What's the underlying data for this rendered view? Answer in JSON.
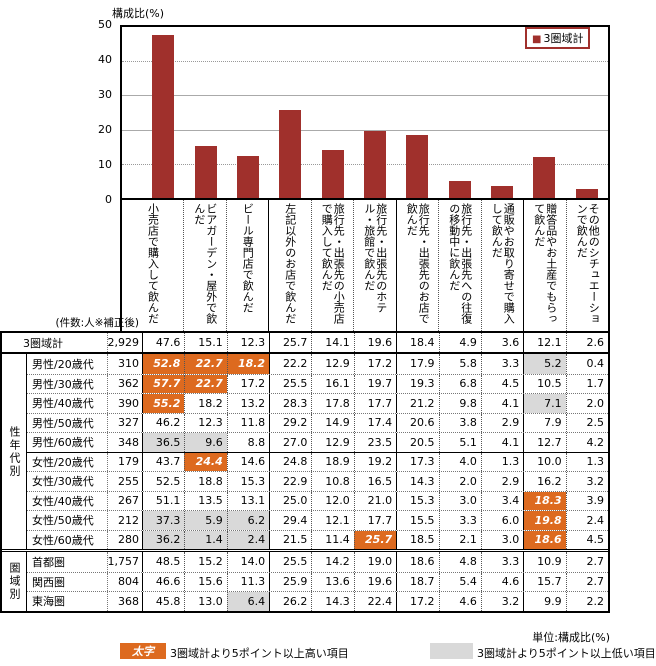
{
  "chart": {
    "title": "構成比(%)",
    "legend_marker": "■",
    "legend_label": "3圏域計",
    "y_ticks": [
      "50",
      "40",
      "30",
      "20",
      "10",
      "0"
    ],
    "bar_color": "#A0302C",
    "highlight_high_color": "#DD6A1F",
    "highlight_low_color": "#D9D9D9"
  },
  "chart_data": {
    "type": "bar",
    "title": "構成比(%)",
    "ylabel": "構成比(%)",
    "ylim": [
      0,
      50
    ],
    "grid": "horizontal",
    "legend_position": "top-right",
    "categories": [
      "小売店で購入して飲んだ",
      "ビアガーデン・屋外で飲んだ",
      "ビール専門店で飲んだ",
      "左記以外のお店で飲んだ",
      "旅行先・出張先の小売店で購入して飲んだ",
      "旅行先・出張先のホテル・旅館で飲んだ",
      "旅行先・出張先のお店で飲んだ",
      "旅行先・出張先への往復の移動中に飲んだ",
      "通販やお取り寄せで購入して飲んだ",
      "贈答品やお土産でもらって飲んだ",
      "その他のシチュエーションで飲んだ"
    ],
    "series": [
      {
        "name": "3圏域計",
        "values": [
          47.6,
          15.1,
          12.3,
          25.7,
          14.1,
          19.6,
          18.4,
          4.9,
          3.6,
          12.1,
          2.6
        ]
      }
    ]
  },
  "table": {
    "count_header": "(件数:人※補正後)",
    "groups": [
      {
        "label": "性年代別"
      },
      {
        "label": "圏域別"
      }
    ],
    "rows": [
      {
        "label": "3圏域計",
        "count": "2,929",
        "values": [
          "47.6",
          "15.1",
          "12.3",
          "25.7",
          "14.1",
          "19.6",
          "18.4",
          "4.9",
          "3.6",
          "12.1",
          "2.6"
        ],
        "high": [],
        "low": []
      },
      {
        "label": "男性/20歳代",
        "count": "310",
        "values": [
          "52.8",
          "22.7",
          "18.2",
          "22.2",
          "12.9",
          "17.2",
          "17.9",
          "5.8",
          "3.3",
          "5.2",
          "0.4"
        ],
        "high": [
          0,
          1,
          2
        ],
        "low": [
          9
        ]
      },
      {
        "label": "男性/30歳代",
        "count": "362",
        "values": [
          "57.7",
          "22.7",
          "17.2",
          "25.5",
          "16.1",
          "19.7",
          "19.3",
          "6.8",
          "4.5",
          "10.5",
          "1.7"
        ],
        "high": [
          0,
          1
        ],
        "low": []
      },
      {
        "label": "男性/40歳代",
        "count": "390",
        "values": [
          "55.2",
          "18.2",
          "13.2",
          "28.3",
          "17.8",
          "17.7",
          "21.2",
          "9.8",
          "4.1",
          "7.1",
          "2.0"
        ],
        "high": [
          0
        ],
        "low": [
          9
        ]
      },
      {
        "label": "男性/50歳代",
        "count": "327",
        "values": [
          "46.2",
          "12.3",
          "11.8",
          "29.2",
          "14.9",
          "17.4",
          "20.6",
          "3.8",
          "2.9",
          "7.9",
          "2.5"
        ],
        "high": [],
        "low": []
      },
      {
        "label": "男性/60歳代",
        "count": "348",
        "values": [
          "36.5",
          "9.6",
          "8.8",
          "27.0",
          "12.9",
          "23.5",
          "20.5",
          "5.1",
          "4.1",
          "12.7",
          "4.2"
        ],
        "high": [],
        "low": [
          0,
          1
        ]
      },
      {
        "label": "女性/20歳代",
        "count": "179",
        "values": [
          "43.7",
          "24.4",
          "14.6",
          "24.8",
          "18.9",
          "19.2",
          "17.3",
          "4.0",
          "1.3",
          "10.0",
          "1.3"
        ],
        "high": [
          1
        ],
        "low": []
      },
      {
        "label": "女性/30歳代",
        "count": "255",
        "values": [
          "52.5",
          "18.8",
          "15.3",
          "22.9",
          "10.8",
          "16.5",
          "14.3",
          "2.0",
          "2.9",
          "16.2",
          "3.2"
        ],
        "high": [],
        "low": []
      },
      {
        "label": "女性/40歳代",
        "count": "267",
        "values": [
          "51.1",
          "13.5",
          "13.1",
          "25.0",
          "12.0",
          "21.0",
          "15.3",
          "3.0",
          "3.4",
          "18.3",
          "3.9"
        ],
        "high": [
          9
        ],
        "low": []
      },
      {
        "label": "女性/50歳代",
        "count": "212",
        "values": [
          "37.3",
          "5.9",
          "6.2",
          "29.4",
          "12.1",
          "17.7",
          "15.5",
          "3.3",
          "6.0",
          "19.8",
          "2.4"
        ],
        "high": [
          9
        ],
        "low": [
          0,
          1,
          2
        ]
      },
      {
        "label": "女性/60歳代",
        "count": "280",
        "values": [
          "36.2",
          "1.4",
          "2.4",
          "21.5",
          "11.4",
          "25.7",
          "18.5",
          "2.1",
          "3.0",
          "18.6",
          "4.5"
        ],
        "high": [
          5,
          9
        ],
        "low": [
          0,
          1,
          2
        ]
      },
      {
        "label": "首都圏",
        "count": "1,757",
        "values": [
          "48.5",
          "15.2",
          "14.0",
          "25.5",
          "14.2",
          "19.0",
          "18.6",
          "4.8",
          "3.3",
          "10.9",
          "2.7"
        ],
        "high": [],
        "low": []
      },
      {
        "label": "関西圏",
        "count": "804",
        "values": [
          "46.6",
          "15.6",
          "11.3",
          "25.9",
          "13.6",
          "19.6",
          "18.7",
          "5.4",
          "4.6",
          "15.7",
          "2.7"
        ],
        "high": [],
        "low": []
      },
      {
        "label": "東海圏",
        "count": "368",
        "values": [
          "45.8",
          "13.0",
          "6.4",
          "26.2",
          "14.3",
          "22.4",
          "17.2",
          "4.6",
          "3.2",
          "9.9",
          "2.2"
        ],
        "high": [],
        "low": [
          2
        ]
      }
    ]
  },
  "footer": {
    "unit_note": "単位:構成比(%)",
    "high_legend_label": "太字",
    "high_legend_text": "3圏域計より5ポイント以上高い項目",
    "low_legend_text": "3圏域計より5ポイント以上低い項目"
  }
}
